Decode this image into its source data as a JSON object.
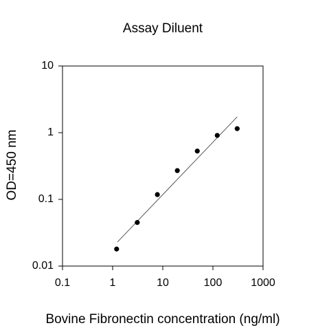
{
  "chart_data": {
    "type": "scatter",
    "title": "Assay Diluent",
    "x_label": "Bovine Fibronectin concentration (ng/ml)",
    "y_label": "OD=450 nm",
    "x": [
      1.2,
      3.1,
      7.8,
      19.5,
      48.8,
      122,
      305
    ],
    "values": [
      0.018,
      0.045,
      0.118,
      0.27,
      0.53,
      0.91,
      1.15
    ],
    "color": "#000000",
    "fit": {
      "x": [
        1.25,
        305
      ],
      "y": [
        0.023,
        1.73
      ]
    },
    "x_log": true,
    "y_log": true,
    "xlim": [
      0.1,
      1000
    ],
    "ylim": [
      0.01,
      10
    ],
    "xticks": [
      0.1,
      1,
      10,
      100,
      1000
    ],
    "yticks": [
      0.01,
      0.1,
      1,
      10
    ]
  }
}
